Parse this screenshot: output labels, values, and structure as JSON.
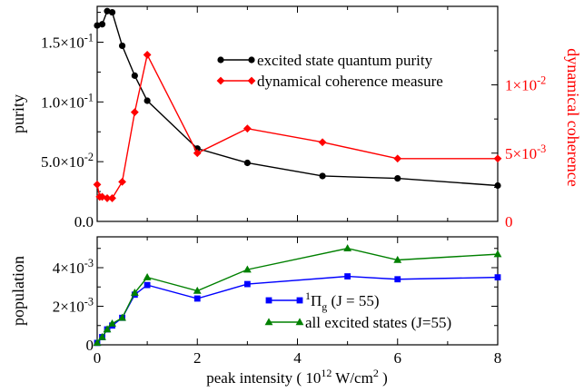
{
  "chart_data": [
    {
      "id": "top",
      "type": "line",
      "xlabel": "",
      "ylabel": "purity",
      "ylabel_right": "dynamical coherence",
      "xlim": [
        0,
        8
      ],
      "ylim": [
        0,
        0.18
      ],
      "ylim_right": [
        0,
        0.01575
      ],
      "grid": false,
      "legend_position": "top-right",
      "yticks": [
        {
          "v": 0,
          "label": "0.0"
        },
        {
          "v": 0.05,
          "label": "5.0×10",
          "exp": "-2"
        },
        {
          "v": 0.1,
          "label": "1.0×10",
          "exp": "-1"
        },
        {
          "v": 0.15,
          "label": "1.5×10",
          "exp": "-1"
        }
      ],
      "yticks_right": [
        {
          "v": 0,
          "label": "0"
        },
        {
          "v": 0.005,
          "label": "5×10",
          "exp": "-3"
        },
        {
          "v": 0.01,
          "label": "1×10",
          "exp": "-2"
        }
      ],
      "series": [
        {
          "name": "excited state quantum purity",
          "color": "#000000",
          "marker": "circle",
          "axis": "left",
          "x": [
            0,
            0.1,
            0.2,
            0.3,
            0.5,
            0.75,
            1,
            2,
            3,
            4.5,
            6,
            8
          ],
          "y": [
            0.164,
            0.165,
            0.176,
            0.175,
            0.147,
            0.122,
            0.101,
            0.061,
            0.049,
            0.038,
            0.036,
            0.03
          ]
        },
        {
          "name": "dynamical coherence measure",
          "color": "#ff0000",
          "marker": "diamond",
          "axis": "right",
          "x": [
            0,
            0.05,
            0.1,
            0.2,
            0.3,
            0.5,
            0.75,
            1,
            2,
            3,
            4.5,
            6,
            8
          ],
          "y": [
            0.0027,
            0.0018,
            0.0018,
            0.0017,
            0.0017,
            0.0029,
            0.008,
            0.0122,
            0.005,
            0.0068,
            0.0058,
            0.0046,
            0.0046
          ]
        }
      ]
    },
    {
      "id": "bottom",
      "type": "line",
      "xlabel": "peak intensity  ( 10",
      "xlabel_sup": "12",
      "xlabel_mid": " W/cm",
      "xlabel_sup2": "2",
      "xlabel_end": " )",
      "ylabel": "population",
      "xlim": [
        0,
        8
      ],
      "ylim": [
        0,
        0.0056
      ],
      "grid": false,
      "legend_position": "bottom-right",
      "xticks": [
        {
          "v": 0,
          "label": "0"
        },
        {
          "v": 2,
          "label": "2"
        },
        {
          "v": 4,
          "label": "4"
        },
        {
          "v": 6,
          "label": "6"
        },
        {
          "v": 8,
          "label": "8"
        }
      ],
      "yticks": [
        {
          "v": 0,
          "label": "0"
        },
        {
          "v": 0.002,
          "label": "2×10",
          "exp": "-3"
        },
        {
          "v": 0.004,
          "label": "4×10",
          "exp": "-3"
        }
      ],
      "series": [
        {
          "name": "Π",
          "name_pre": "1",
          "name_sub": "g",
          "name_post": " (J = 55)",
          "color": "#0000ff",
          "marker": "square",
          "x": [
            0,
            0.1,
            0.2,
            0.3,
            0.5,
            0.75,
            1,
            2,
            3,
            5,
            6,
            8
          ],
          "y": [
            0.0001,
            0.0004,
            0.0008,
            0.001,
            0.0014,
            0.0026,
            0.0031,
            0.0024,
            0.00315,
            0.00355,
            0.0034,
            0.0035
          ]
        },
        {
          "name": "all excited states (J=55)",
          "color": "#008000",
          "marker": "triangle",
          "x": [
            0,
            0.1,
            0.2,
            0.3,
            0.5,
            0.75,
            1,
            2,
            3,
            5,
            6,
            8
          ],
          "y": [
            0.0001,
            0.0004,
            0.0008,
            0.0011,
            0.0014,
            0.0027,
            0.0035,
            0.0028,
            0.0039,
            0.005,
            0.0044,
            0.0047
          ]
        }
      ]
    }
  ]
}
